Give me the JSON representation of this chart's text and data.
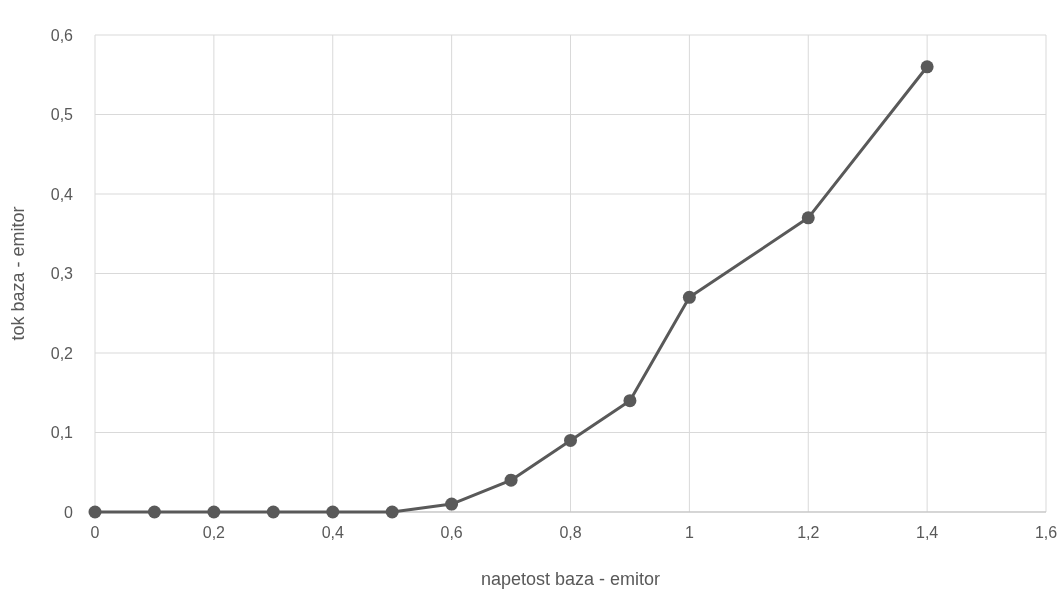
{
  "chart_data": {
    "type": "line",
    "xlabel": "napetost baza - emitor",
    "ylabel": "tok baza - emitor",
    "x": [
      0,
      0.1,
      0.2,
      0.3,
      0.4,
      0.5,
      0.6,
      0.7,
      0.8,
      0.9,
      1,
      1.2,
      1.4
    ],
    "series": [
      {
        "color": "#595959",
        "values": [
          0,
          0,
          0,
          0,
          0,
          0,
          0.01,
          0.04,
          0.09,
          0.14,
          0.27,
          0.37,
          0.56
        ]
      }
    ],
    "xlim": [
      0,
      1.6
    ],
    "ylim": [
      0,
      0.6
    ],
    "xticks": [
      0,
      {
        "value": 0.2,
        "label": "0,2"
      },
      {
        "value": 0.4,
        "label": "0,4"
      },
      {
        "value": 0.6,
        "label": "0,6"
      },
      {
        "value": 0.8,
        "label": "0,8"
      },
      1,
      {
        "value": 1.2,
        "label": "1,2"
      },
      {
        "value": 1.4,
        "label": "1,4"
      },
      {
        "value": 1.6,
        "label": "1,6"
      }
    ],
    "yticks": [
      0,
      {
        "value": 0.1,
        "label": "0,1"
      },
      {
        "value": 0.2,
        "label": "0,2"
      },
      {
        "value": 0.3,
        "label": "0,3"
      },
      {
        "value": 0.4,
        "label": "0,4"
      },
      {
        "value": 0.5,
        "label": "0,5"
      },
      {
        "value": 0.6,
        "label": "0,6"
      }
    ],
    "grid": true,
    "marker": "circle",
    "line_style": "solid"
  }
}
